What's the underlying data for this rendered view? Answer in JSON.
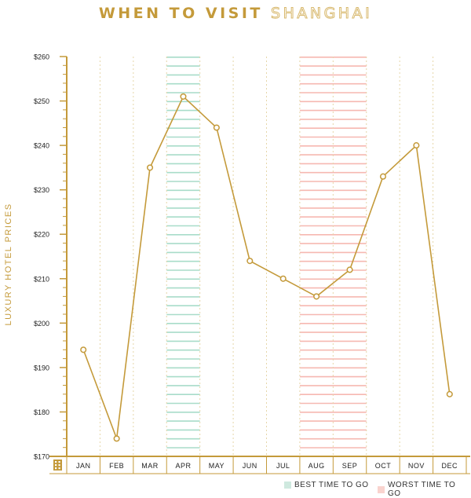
{
  "title": {
    "part1": "WHEN TO VISIT",
    "part2": "SHANGHAI"
  },
  "colors": {
    "accent": "#c49a3a",
    "best": "#a8dcc9",
    "worst": "#f6b8b1",
    "grid": "#e6d6a8"
  },
  "legend": [
    {
      "label": "BEST TIME TO GO",
      "color": "#cfe9df"
    },
    {
      "label": "WORST TIME TO GO",
      "color": "#f9d3ce"
    }
  ],
  "chart_data": {
    "type": "line",
    "title": "WHEN TO VISIT SHANGHAI",
    "ylabel": "LUXURY HOTEL PRICES",
    "xlabel": "",
    "categories": [
      "JAN",
      "FEB",
      "MAR",
      "APR",
      "MAY",
      "JUN",
      "JUL",
      "AUG",
      "SEP",
      "OCT",
      "NOV",
      "DEC"
    ],
    "series": [
      {
        "values": [
          194,
          174,
          235,
          251,
          244,
          214,
          210,
          206,
          212,
          233,
          240,
          184
        ]
      }
    ],
    "ylim": [
      170,
      260
    ],
    "yticks": [
      170,
      180,
      190,
      200,
      210,
      220,
      230,
      240,
      250,
      260
    ],
    "ytick_labels": [
      "$170",
      "$180",
      "$190",
      "$200",
      "$210",
      "$220",
      "$230",
      "$240",
      "$250",
      "$260"
    ],
    "best_months": [
      "APR"
    ],
    "worst_months": [
      "AUG",
      "SEP"
    ],
    "axis_icon": "building-icon",
    "grid": "vertical dotted"
  }
}
